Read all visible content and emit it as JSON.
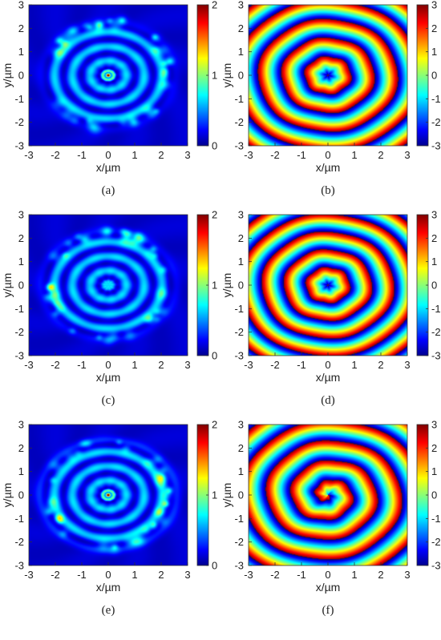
{
  "panels": [
    {
      "caption": "(a)",
      "caption_letter": "a",
      "kind": "intensity",
      "xlabel": "x/µm",
      "ylabel": "y/µm",
      "xticks": [
        "-3",
        "-2",
        "-1",
        "0",
        "1",
        "2",
        "3"
      ],
      "yticks": [
        "3",
        "2",
        "1",
        "0",
        "-1",
        "-2",
        "-3"
      ],
      "colorbar_ticks": [
        "2",
        "1",
        "0"
      ],
      "colorbar_range": [
        0,
        2
      ]
    },
    {
      "caption": "(b)",
      "caption_letter": "b",
      "kind": "phase",
      "xlabel": "x/µm",
      "ylabel": "y/µm",
      "xticks": [
        "-3",
        "-2",
        "-1",
        "0",
        "1",
        "2",
        "3"
      ],
      "yticks": [
        "3",
        "2",
        "1",
        "0",
        "-1",
        "-2",
        "-3"
      ],
      "colorbar_ticks": [
        "3",
        "2",
        "1",
        "0",
        "-1",
        "-2",
        "-3"
      ],
      "colorbar_range": [
        -3,
        3
      ]
    },
    {
      "caption": "(c)",
      "caption_letter": "c",
      "kind": "intensity",
      "xlabel": "x/µm",
      "ylabel": "y/µm",
      "xticks": [
        "-3",
        "-2",
        "-1",
        "0",
        "1",
        "2",
        "3"
      ],
      "yticks": [
        "3",
        "2",
        "1",
        "0",
        "-1",
        "-2",
        "-3"
      ],
      "colorbar_ticks": [
        "2",
        "1",
        "0"
      ],
      "colorbar_range": [
        0,
        2
      ]
    },
    {
      "caption": "(d)",
      "caption_letter": "d",
      "kind": "phase",
      "xlabel": "x/µm",
      "ylabel": "y/µm",
      "xticks": [
        "-3",
        "-2",
        "-1",
        "0",
        "1",
        "2",
        "3"
      ],
      "yticks": [
        "3",
        "2",
        "1",
        "0",
        "-1",
        "-2",
        "-3"
      ],
      "colorbar_ticks": [
        "3",
        "2",
        "1",
        "0",
        "-1",
        "-2",
        "-3"
      ],
      "colorbar_range": [
        -3,
        3
      ]
    },
    {
      "caption": "(e)",
      "caption_letter": "e",
      "kind": "intensity",
      "xlabel": "x/µm",
      "ylabel": "y/µm",
      "xticks": [
        "-3",
        "-2",
        "-1",
        "0",
        "1",
        "2",
        "3"
      ],
      "yticks": [
        "3",
        "2",
        "1",
        "0",
        "-1",
        "-2",
        "-3"
      ],
      "colorbar_ticks": [
        "2",
        "1",
        "0"
      ],
      "colorbar_range": [
        0,
        2
      ]
    },
    {
      "caption": "(f)",
      "caption_letter": "f",
      "kind": "phase",
      "xlabel": "x/µm",
      "ylabel": "y/µm",
      "xticks": [
        "-3",
        "-2",
        "-1",
        "0",
        "1",
        "2",
        "3"
      ],
      "yticks": [
        "3",
        "2",
        "1",
        "0",
        "-1",
        "-2",
        "-3"
      ],
      "colorbar_ticks": [
        "3",
        "2",
        "1",
        "0",
        "-1",
        "-2",
        "-3"
      ],
      "colorbar_range": [
        -3,
        3
      ]
    }
  ],
  "colormap": "jet",
  "colors": {
    "jet_low": "#00008f",
    "jet_mid": "#00ffff",
    "jet_high": "#800000"
  }
}
